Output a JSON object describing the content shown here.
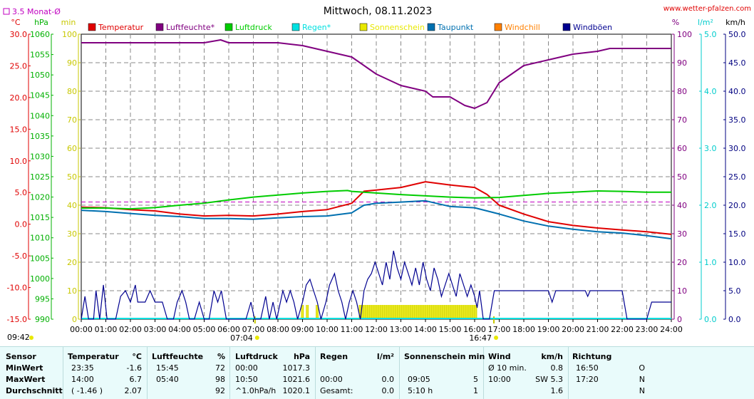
{
  "chart_data": {
    "type": "line",
    "title": "Mittwoch, 08.11.2023",
    "source": "www.wetter-pfalzen.com",
    "avg_label": "3.5 Monat-Ø",
    "x_ticks": [
      "00:00",
      "01:00",
      "02:00",
      "03:00",
      "04:00",
      "05:00",
      "06:00",
      "07:00",
      "08:00",
      "09:00",
      "10:00",
      "11:00",
      "12:00",
      "13:00",
      "14:00",
      "15:00",
      "16:00",
      "17:00",
      "18:00",
      "19:00",
      "20:00",
      "21:00",
      "22:00",
      "23:00",
      "24:00"
    ],
    "sunrise": "07:04",
    "sunset": "16:47",
    "time_left": "09:42",
    "axes": {
      "temp": {
        "unit": "°C",
        "ticks": [
          "30.0",
          "25.0",
          "20.0",
          "15.0",
          "10.0",
          "5.0",
          "0.0",
          "-5.0",
          "-10.0",
          "-15.0"
        ],
        "range": [
          -15,
          30
        ]
      },
      "press": {
        "unit": "hPa",
        "ticks": [
          "1060",
          "1055",
          "1050",
          "1045",
          "1040",
          "1035",
          "1030",
          "1025",
          "1020",
          "1015",
          "1010",
          "1005",
          "1000",
          "995",
          "990"
        ],
        "range": [
          990,
          1060
        ]
      },
      "minutes": {
        "unit": "min",
        "ticks": [
          "100",
          "90",
          "80",
          "70",
          "60",
          "50",
          "40",
          "30",
          "20",
          "10",
          "0"
        ],
        "range": [
          0,
          100
        ]
      },
      "hum": {
        "unit": "%",
        "ticks": [
          "100",
          "90",
          "80",
          "70",
          "60",
          "50",
          "40",
          "30",
          "20",
          "10",
          "0"
        ],
        "range": [
          0,
          100
        ]
      },
      "rain": {
        "unit": "l/m²",
        "ticks": [
          "5.0",
          "4.0",
          "3.0",
          "2.0",
          "1.0",
          "0.0"
        ],
        "range": [
          0,
          5
        ]
      },
      "wind": {
        "unit": "km/h",
        "ticks": [
          "50.0",
          "45.0",
          "40.0",
          "35.0",
          "30.0",
          "25.0",
          "20.0",
          "15.0",
          "10.0",
          "5.0",
          "0.0"
        ],
        "range": [
          0,
          50
        ]
      }
    },
    "legend": [
      {
        "name": "Temperatur",
        "color": "#e00000"
      },
      {
        "name": "Luftfeuchte*",
        "color": "#800080"
      },
      {
        "name": "Luftdruck",
        "color": "#00cc00"
      },
      {
        "name": "Regen*",
        "color": "#00e0e0"
      },
      {
        "name": "Sonnenschein",
        "color": "#e8e800"
      },
      {
        "name": "Taupunkt",
        "color": "#0070b0"
      },
      {
        "name": "Windchill",
        "color": "#ff8000"
      },
      {
        "name": "Windböen",
        "color": "#000090"
      }
    ],
    "avg_temp_line": 3.5,
    "series": [
      {
        "name": "Temperatur",
        "axis": "temp",
        "color": "#e00000",
        "points": [
          [
            0,
            2.7
          ],
          [
            1,
            2.6
          ],
          [
            2,
            2.3
          ],
          [
            3,
            2.1
          ],
          [
            4,
            1.6
          ],
          [
            5,
            1.3
          ],
          [
            6,
            1.4
          ],
          [
            7,
            1.3
          ],
          [
            8,
            1.6
          ],
          [
            9,
            2.0
          ],
          [
            10,
            2.3
          ],
          [
            11,
            3.3
          ],
          [
            11.5,
            5.2
          ],
          [
            12,
            5.4
          ],
          [
            13,
            5.8
          ],
          [
            14,
            6.7
          ],
          [
            15,
            6.2
          ],
          [
            16,
            5.8
          ],
          [
            16.5,
            4.7
          ],
          [
            17,
            3.0
          ],
          [
            18,
            1.6
          ],
          [
            19,
            0.4
          ],
          [
            20,
            -0.2
          ],
          [
            21,
            -0.6
          ],
          [
            22,
            -0.9
          ],
          [
            23,
            -1.2
          ],
          [
            24,
            -1.6
          ]
        ]
      },
      {
        "name": "Luftfeuchte*",
        "axis": "hum",
        "color": "#800080",
        "points": [
          [
            0,
            97
          ],
          [
            1,
            97
          ],
          [
            2,
            97
          ],
          [
            3,
            97
          ],
          [
            4,
            97
          ],
          [
            5,
            97
          ],
          [
            5.67,
            98
          ],
          [
            6,
            97
          ],
          [
            7,
            97
          ],
          [
            8,
            97
          ],
          [
            9,
            96
          ],
          [
            10,
            94
          ],
          [
            11,
            92
          ],
          [
            11.5,
            89
          ],
          [
            12,
            86
          ],
          [
            13,
            82
          ],
          [
            14,
            80
          ],
          [
            14.3,
            78
          ],
          [
            15,
            78
          ],
          [
            15.6,
            75
          ],
          [
            16,
            74
          ],
          [
            16.5,
            76
          ],
          [
            17,
            83
          ],
          [
            18,
            89
          ],
          [
            19,
            91
          ],
          [
            20,
            93
          ],
          [
            21,
            94
          ],
          [
            21.5,
            95
          ],
          [
            22,
            95
          ],
          [
            23,
            95
          ],
          [
            24,
            95
          ]
        ]
      },
      {
        "name": "Luftdruck",
        "axis": "press",
        "color": "#00cc00",
        "points": [
          [
            0,
            1017.3
          ],
          [
            1,
            1017.3
          ],
          [
            2,
            1017.1
          ],
          [
            3,
            1017.4
          ],
          [
            4,
            1018.0
          ],
          [
            5,
            1018.5
          ],
          [
            6,
            1019.3
          ],
          [
            7,
            1020.0
          ],
          [
            8,
            1020.5
          ],
          [
            9,
            1021.0
          ],
          [
            10,
            1021.4
          ],
          [
            10.83,
            1021.6
          ],
          [
            11,
            1021.4
          ],
          [
            12,
            1021.0
          ],
          [
            13,
            1020.6
          ],
          [
            14,
            1020.3
          ],
          [
            15,
            1020.0
          ],
          [
            16,
            1019.8
          ],
          [
            17,
            1019.9
          ],
          [
            18,
            1020.4
          ],
          [
            19,
            1020.9
          ],
          [
            20,
            1021.2
          ],
          [
            21,
            1021.5
          ],
          [
            22,
            1021.4
          ],
          [
            23,
            1021.2
          ],
          [
            24,
            1021.2
          ]
        ]
      },
      {
        "name": "Taupunkt",
        "axis": "temp",
        "color": "#0070b0",
        "points": [
          [
            0,
            2.2
          ],
          [
            1,
            2.0
          ],
          [
            2,
            1.7
          ],
          [
            3,
            1.4
          ],
          [
            4,
            1.2
          ],
          [
            5,
            0.9
          ],
          [
            6,
            0.9
          ],
          [
            7,
            0.8
          ],
          [
            8,
            1.0
          ],
          [
            9,
            1.2
          ],
          [
            10,
            1.3
          ],
          [
            11,
            1.8
          ],
          [
            11.5,
            3.0
          ],
          [
            12,
            3.3
          ],
          [
            13,
            3.5
          ],
          [
            14,
            3.7
          ],
          [
            15,
            2.8
          ],
          [
            16,
            2.6
          ],
          [
            17,
            1.6
          ],
          [
            18,
            0.5
          ],
          [
            19,
            -0.3
          ],
          [
            20,
            -0.8
          ],
          [
            21,
            -1.2
          ],
          [
            22,
            -1.4
          ],
          [
            23,
            -1.8
          ],
          [
            24,
            -2.3
          ]
        ]
      }
    ],
    "sunshine_blocks": [
      [
        8.95,
        9.05
      ],
      [
        9.15,
        9.25
      ],
      [
        9.55,
        9.65
      ],
      [
        11.3,
        16.1
      ]
    ],
    "wind_gusts": {
      "color": "#000090",
      "points": [
        [
          0,
          0
        ],
        [
          0.15,
          4
        ],
        [
          0.3,
          0
        ],
        [
          0.5,
          0
        ],
        [
          0.6,
          5
        ],
        [
          0.75,
          0
        ],
        [
          0.9,
          6
        ],
        [
          1.05,
          0
        ],
        [
          1.4,
          0
        ],
        [
          1.6,
          4
        ],
        [
          1.8,
          5
        ],
        [
          2.0,
          3
        ],
        [
          2.2,
          6
        ],
        [
          2.3,
          3
        ],
        [
          2.6,
          3
        ],
        [
          2.8,
          5
        ],
        [
          3.0,
          3
        ],
        [
          3.3,
          3
        ],
        [
          3.5,
          0
        ],
        [
          3.75,
          0
        ],
        [
          3.9,
          3
        ],
        [
          4.1,
          5
        ],
        [
          4.25,
          3
        ],
        [
          4.4,
          0
        ],
        [
          4.6,
          0
        ],
        [
          4.8,
          3
        ],
        [
          5.0,
          0
        ],
        [
          5.2,
          0
        ],
        [
          5.4,
          5
        ],
        [
          5.55,
          3
        ],
        [
          5.7,
          5
        ],
        [
          5.9,
          0
        ],
        [
          6.2,
          0
        ],
        [
          6.4,
          0
        ],
        [
          6.7,
          0
        ],
        [
          6.9,
          3
        ],
        [
          7.05,
          0
        ],
        [
          7.3,
          0
        ],
        [
          7.5,
          4
        ],
        [
          7.65,
          0
        ],
        [
          7.8,
          3
        ],
        [
          7.95,
          0
        ],
        [
          8.2,
          5
        ],
        [
          8.35,
          3
        ],
        [
          8.5,
          5
        ],
        [
          8.65,
          3
        ],
        [
          8.8,
          0
        ],
        [
          9.0,
          3
        ],
        [
          9.15,
          6
        ],
        [
          9.3,
          7
        ],
        [
          9.45,
          5
        ],
        [
          9.6,
          3
        ],
        [
          9.75,
          0
        ],
        [
          9.95,
          3
        ],
        [
          10.1,
          6
        ],
        [
          10.3,
          8
        ],
        [
          10.45,
          5
        ],
        [
          10.6,
          3
        ],
        [
          10.75,
          0
        ],
        [
          10.9,
          3
        ],
        [
          11.05,
          5
        ],
        [
          11.2,
          3
        ],
        [
          11.35,
          0
        ],
        [
          11.5,
          5
        ],
        [
          11.65,
          7
        ],
        [
          11.8,
          8
        ],
        [
          11.95,
          10
        ],
        [
          12.1,
          8
        ],
        [
          12.25,
          6
        ],
        [
          12.4,
          10
        ],
        [
          12.55,
          7
        ],
        [
          12.7,
          12
        ],
        [
          12.85,
          9
        ],
        [
          13.0,
          7
        ],
        [
          13.15,
          10
        ],
        [
          13.3,
          8
        ],
        [
          13.45,
          6
        ],
        [
          13.6,
          9
        ],
        [
          13.75,
          6
        ],
        [
          13.9,
          10
        ],
        [
          14.05,
          7
        ],
        [
          14.2,
          5
        ],
        [
          14.35,
          9
        ],
        [
          14.5,
          7
        ],
        [
          14.65,
          4
        ],
        [
          14.8,
          6
        ],
        [
          14.95,
          8
        ],
        [
          15.1,
          6
        ],
        [
          15.25,
          4
        ],
        [
          15.4,
          8
        ],
        [
          15.55,
          6
        ],
        [
          15.7,
          4
        ],
        [
          15.85,
          6
        ],
        [
          16.0,
          4
        ],
        [
          16.1,
          2
        ],
        [
          16.2,
          5
        ],
        [
          16.35,
          0
        ],
        [
          16.6,
          0
        ],
        [
          16.8,
          5
        ],
        [
          16.95,
          5
        ],
        [
          17.5,
          5
        ],
        [
          18.0,
          5
        ],
        [
          18.5,
          5
        ],
        [
          19.0,
          5
        ],
        [
          19.15,
          3
        ],
        [
          19.3,
          5
        ],
        [
          20.5,
          5
        ],
        [
          20.6,
          4
        ],
        [
          20.7,
          5
        ],
        [
          21.5,
          5
        ],
        [
          22.0,
          5
        ],
        [
          22.2,
          0
        ],
        [
          22.6,
          0
        ],
        [
          23.0,
          0
        ],
        [
          23.2,
          3
        ],
        [
          23.4,
          3
        ],
        [
          23.6,
          3
        ],
        [
          23.8,
          3
        ],
        [
          24,
          3
        ]
      ]
    }
  },
  "stats": {
    "headers": {
      "sensor": "Sensor",
      "temperatur": "Temperatur",
      "temp_unit": "°C",
      "luftfeuchte": "Luftfeuchte",
      "hum_unit": "%",
      "luftdruck": "Luftdruck",
      "press_unit": "hPa",
      "regen": "Regen",
      "rain_unit": "l/m²",
      "sonne": "Sonnenschein min",
      "wind": "Wind",
      "wind_unit": "km/h",
      "richtung": "Richtung"
    },
    "rows": [
      {
        "label": "MinWert",
        "t_time": "23:35",
        "t_val": "-1.6",
        "h_time": "15:45",
        "h_val": "72",
        "p_time": "00:00",
        "p_val": "1017.3",
        "r_time": "",
        "r_val": "",
        "s_time": "",
        "s_val": "",
        "w_time": "Ø 10 min.",
        "w_val": "0.8",
        "d_time": "16:50",
        "d_val": "O"
      },
      {
        "label": "MaxWert",
        "t_time": "14:00",
        "t_val": "6.7",
        "h_time": "05:40",
        "h_val": "98",
        "p_time": "10:50",
        "p_val": "1021.6",
        "r_time": "00:00",
        "r_val": "0.0",
        "s_time": "09:05",
        "s_val": "5",
        "w_time": "10:00",
        "w_val": "SW 5.3",
        "d_time": "17:20",
        "d_val": "N"
      },
      {
        "label": "Durchschnitt",
        "t_time": "( -1.46 )",
        "t_val": "2.07",
        "h_time": "",
        "h_val": "92",
        "p_time": "^1.0hPa/h",
        "p_val": "1020.1",
        "r_time": "Gesamt:",
        "r_val": "0.0",
        "s_time": "5:10 h",
        "s_val": "1",
        "w_time": "",
        "w_val": "1.6",
        "d_time": "",
        "d_val": "N"
      }
    ]
  }
}
